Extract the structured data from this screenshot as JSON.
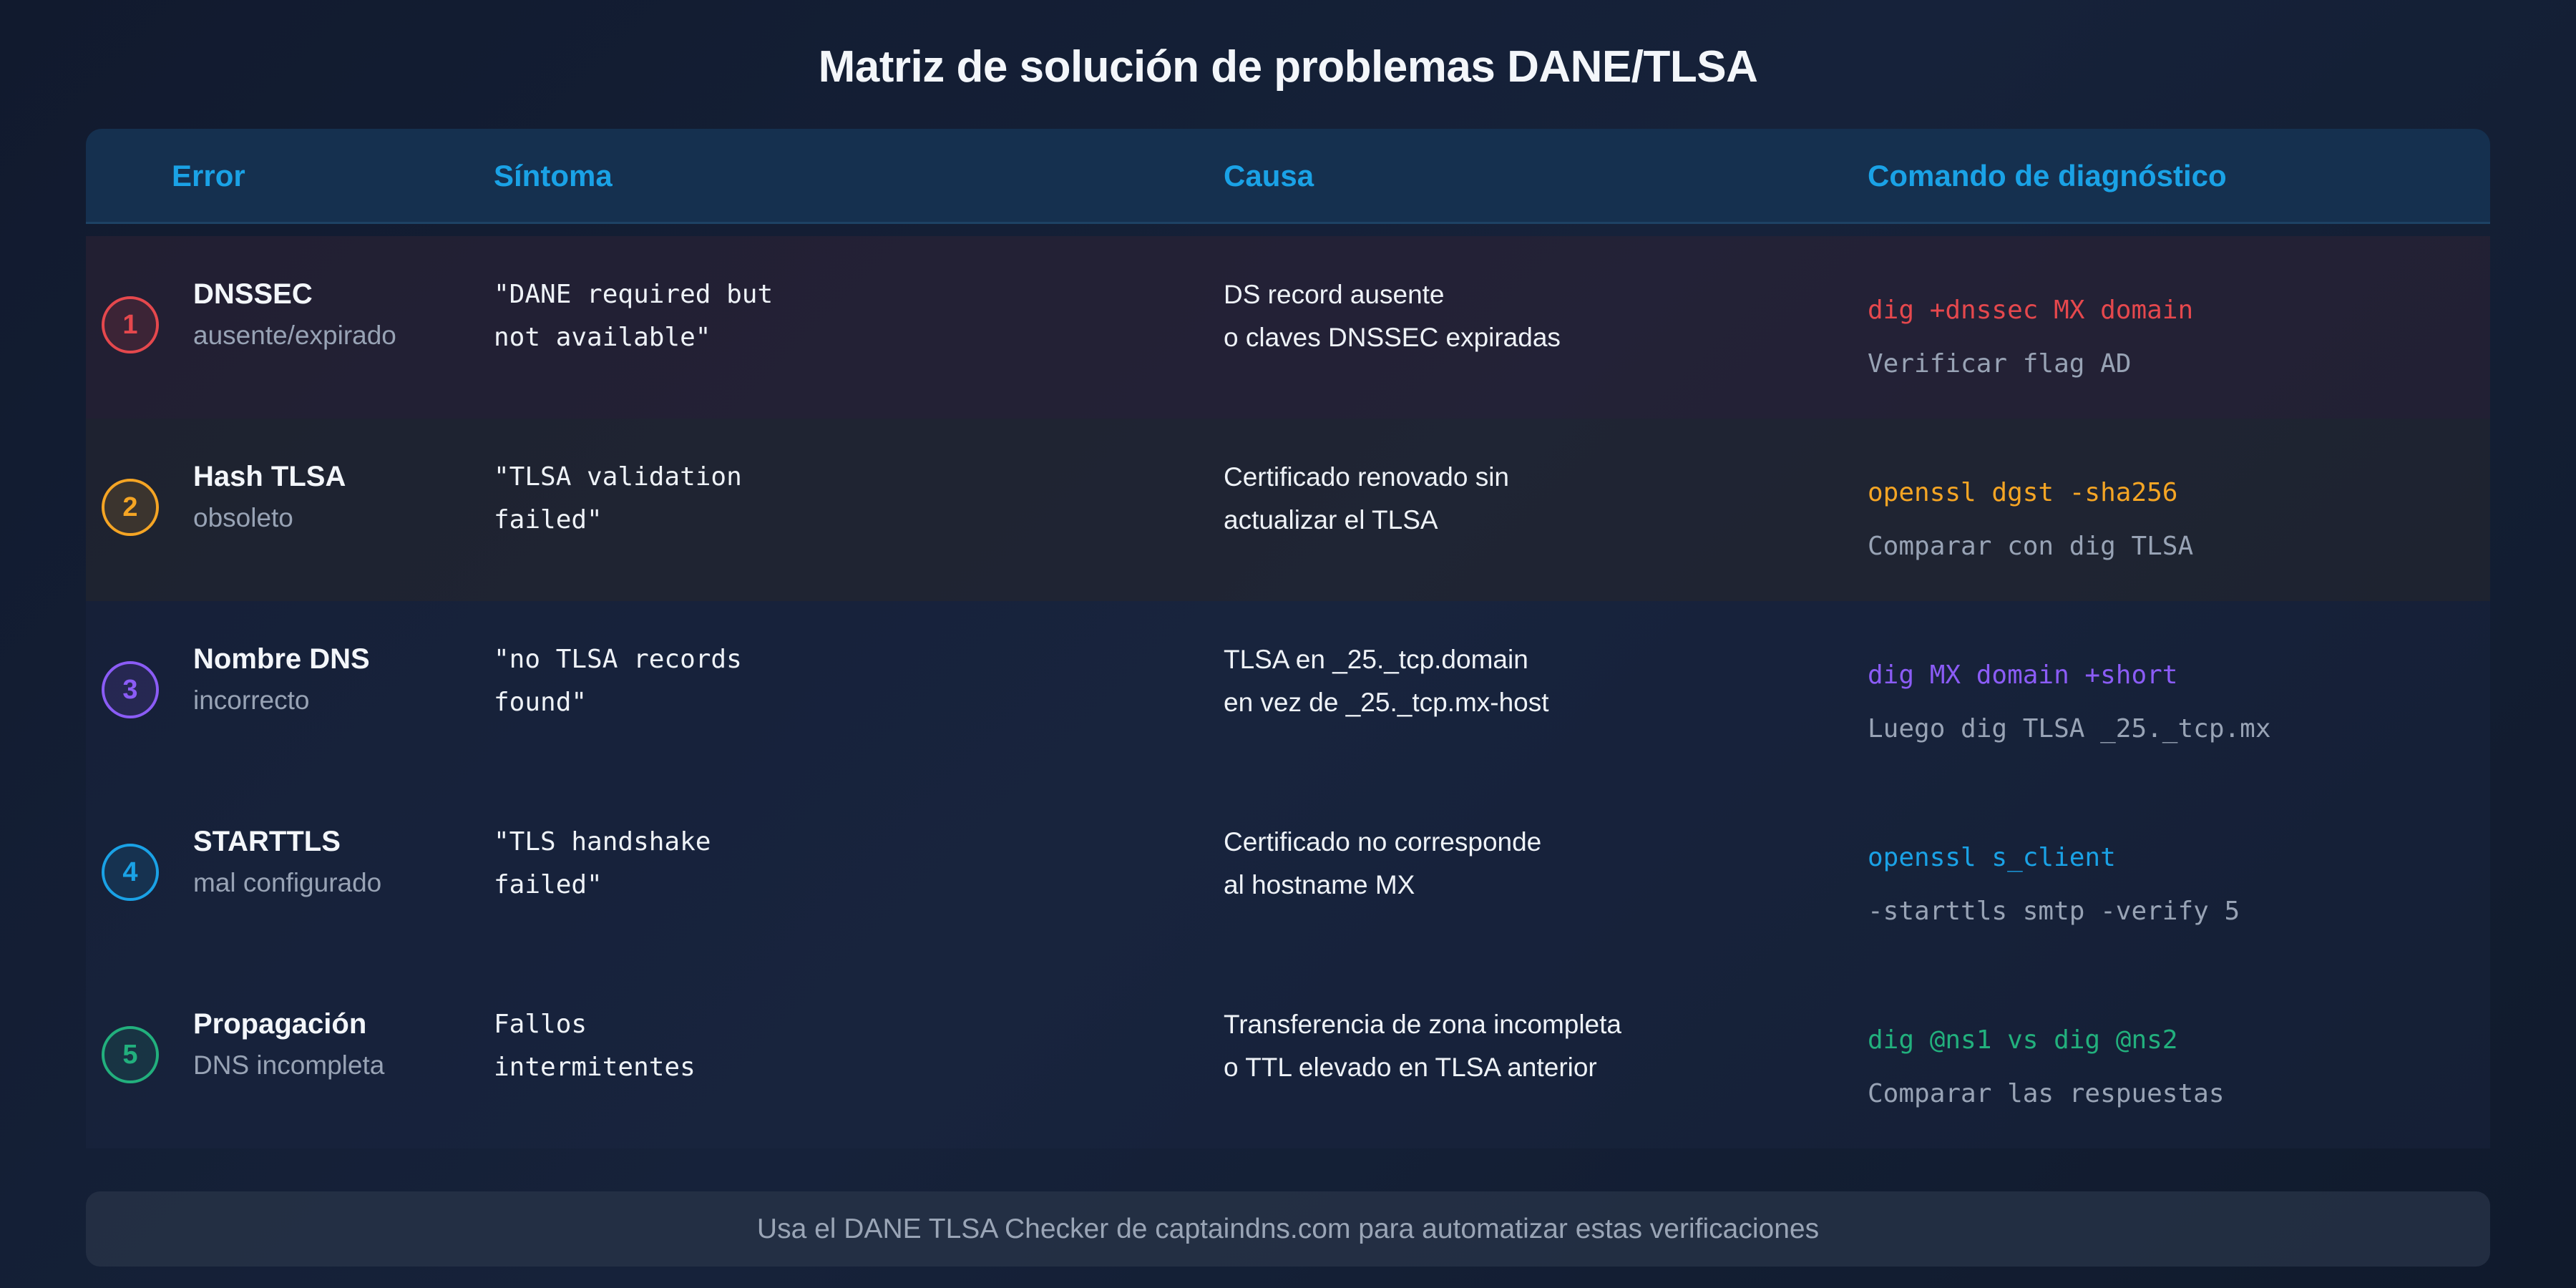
{
  "title": "Matriz de solución de problemas DANE/TLSA",
  "headers": {
    "error": "Error",
    "symptom": "Síntoma",
    "cause": "Causa",
    "command": "Comando de diagnóstico"
  },
  "rows": [
    {
      "num": "1",
      "error_title": "DNSSEC",
      "error_sub": "ausente/expirado",
      "symptom_1": "\"DANE required but",
      "symptom_2": "not available\"",
      "cause_1": "DS record ausente",
      "cause_2": "o claves DNSSEC expiradas",
      "cmd": "dig +dnssec MX domain",
      "cmd_sub": "Verificar flag AD",
      "color": "#e5484d"
    },
    {
      "num": "2",
      "error_title": "Hash TLSA",
      "error_sub": "obsoleto",
      "symptom_1": "\"TLSA validation",
      "symptom_2": "failed\"",
      "cause_1": "Certificado renovado sin",
      "cause_2": "actualizar el TLSA",
      "cmd": "openssl dgst -sha256",
      "cmd_sub": "Comparar con dig TLSA",
      "color": "#f5a524"
    },
    {
      "num": "3",
      "error_title": "Nombre DNS",
      "error_sub": "incorrecto",
      "symptom_1": "\"no TLSA records",
      "symptom_2": "found\"",
      "cause_1": "TLSA en _25._tcp.domain",
      "cause_2": "en vez de _25._tcp.mx-host",
      "cmd": "dig MX domain +short",
      "cmd_sub": "Luego dig TLSA _25._tcp.mx",
      "color": "#8b5cf6"
    },
    {
      "num": "4",
      "error_title": "STARTTLS",
      "error_sub": "mal configurado",
      "symptom_1": "\"TLS handshake",
      "symptom_2": "failed\"",
      "cause_1": "Certificado no corresponde",
      "cause_2": "al hostname MX",
      "cmd": "openssl s_client",
      "cmd_sub": "-starttls smtp -verify 5",
      "color": "#1aa2e6"
    },
    {
      "num": "5",
      "error_title": "Propagación",
      "error_sub": "DNS incompleta",
      "symptom_1": "Fallos",
      "symptom_2": "intermitentes",
      "cause_1": "Transferencia de zona incompleta",
      "cause_2": "o TTL elevado en TLSA anterior",
      "cmd": "dig @ns1 vs dig @ns2",
      "cmd_sub": "Comparar las respuestas",
      "color": "#22b07d"
    }
  ],
  "footer": "Usa el DANE TLSA Checker de captaindns.com para automatizar estas verificaciones"
}
